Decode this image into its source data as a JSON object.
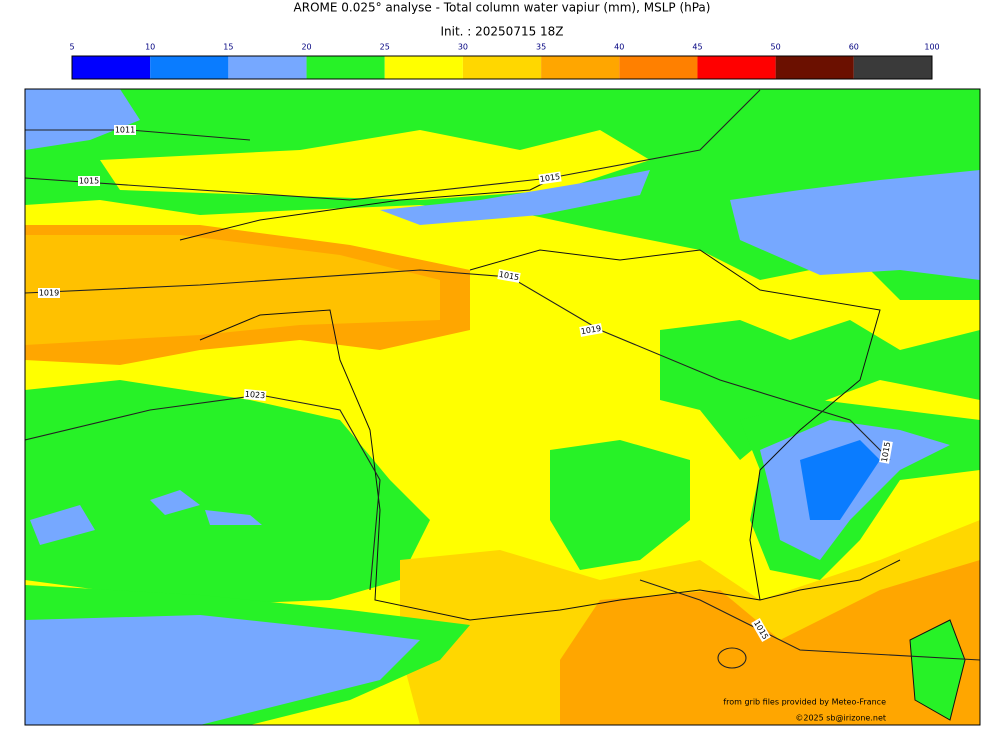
{
  "title": "AROME 0.025° analyse - Total column water vapiur (mm), MSLP (hPa)",
  "subtitle": "Init. : 20250715 18Z",
  "colorbar": {
    "ticks": [
      5,
      10,
      15,
      20,
      25,
      30,
      35,
      40,
      45,
      50,
      60,
      100
    ],
    "colors": [
      "#0000ff",
      "#0a7cff",
      "#76a8ff",
      "#27f227",
      "#ffff00",
      "#ffd700",
      "#ffa600",
      "#ff8000",
      "#ff0000",
      "#6b1000",
      "#3a3a3a"
    ]
  },
  "isobar_labels": [
    "1011",
    "1015",
    "1015",
    "1019",
    "1015",
    "1019",
    "1023",
    "1015",
    "1015"
  ],
  "credits": [
    "from grib files provided by Meteo-France",
    "©2025 sb@irizone.net"
  ]
}
